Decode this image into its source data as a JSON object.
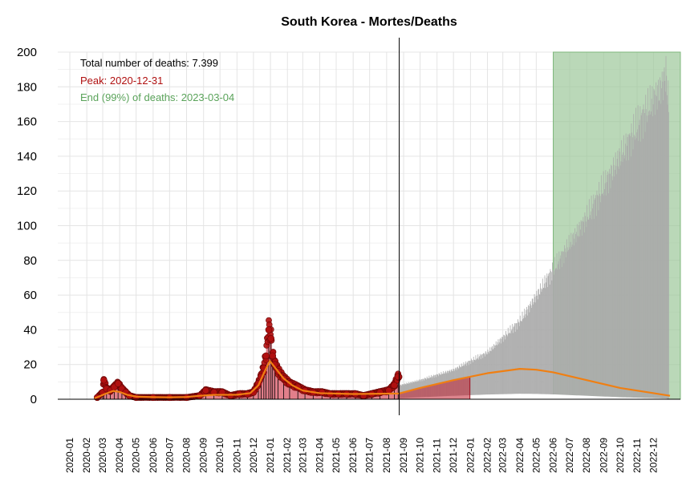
{
  "chart_data": {
    "type": "bar",
    "title": "South Korea - Mortes/Deaths",
    "xlabel": "",
    "ylabel": "",
    "ylim": [
      0,
      200
    ],
    "yticks": [
      0,
      20,
      40,
      60,
      80,
      100,
      120,
      140,
      160,
      180,
      200
    ],
    "xlim": [
      "2019-12-10",
      "2023-01-19"
    ],
    "xticks": [
      "2020-01",
      "2020-02",
      "2020-03",
      "2020-04",
      "2020-05",
      "2020-06",
      "2020-07",
      "2020-08",
      "2020-09",
      "2020-10",
      "2020-11",
      "2020-12",
      "2021-01",
      "2021-02",
      "2021-03",
      "2021-04",
      "2021-05",
      "2021-06",
      "2021-07",
      "2021-08",
      "2021-09",
      "2021-10",
      "2021-11",
      "2021-12",
      "2022-01",
      "2022-02",
      "2022-03",
      "2022-04",
      "2022-05",
      "2022-06",
      "2022-07",
      "2022-08",
      "2022-09",
      "2022-10",
      "2022-11",
      "2022-12"
    ],
    "grid": true,
    "data_end_date": "2021-08-24",
    "annotations": {
      "total": "Total number of deaths: 7.399",
      "peak": "Peak: 2020-12-31",
      "end": "End (99%) of deaths: 2023-03-04"
    },
    "colors": {
      "observed_points": "#b01010",
      "observed_bars": "#e07b87",
      "fit_line": "#f07f12",
      "projection_bars": "#aaaaaa",
      "end_region": "#9cc79a",
      "peak_text": "#b01010",
      "end_text": "#5aa35a"
    },
    "series": [
      {
        "kind": "observed_daily_deaths",
        "points": [
          [
            "2020-02-20",
            1
          ],
          [
            "2020-03-01",
            4
          ],
          [
            "2020-03-03",
            11
          ],
          [
            "2020-03-08",
            6
          ],
          [
            "2020-03-15",
            5
          ],
          [
            "2020-03-22",
            7
          ],
          [
            "2020-03-29",
            9
          ],
          [
            "2020-04-05",
            6
          ],
          [
            "2020-04-12",
            4
          ],
          [
            "2020-04-19",
            2
          ],
          [
            "2020-05-01",
            1
          ],
          [
            "2020-06-01",
            1
          ],
          [
            "2020-07-01",
            1
          ],
          [
            "2020-08-01",
            1
          ],
          [
            "2020-08-25",
            2
          ],
          [
            "2020-09-05",
            5
          ],
          [
            "2020-09-20",
            4
          ],
          [
            "2020-10-05",
            4
          ],
          [
            "2020-10-20",
            2
          ],
          [
            "2020-11-05",
            3
          ],
          [
            "2020-11-20",
            3
          ],
          [
            "2020-12-01",
            4
          ],
          [
            "2020-12-10",
            9
          ],
          [
            "2020-12-15",
            13
          ],
          [
            "2020-12-20",
            18
          ],
          [
            "2020-12-24",
            25
          ],
          [
            "2020-12-29",
            40
          ],
          [
            "2021-01-02",
            35
          ],
          [
            "2021-01-05",
            25
          ],
          [
            "2021-01-09",
            20
          ],
          [
            "2021-01-15",
            16
          ],
          [
            "2021-01-25",
            12
          ],
          [
            "2021-02-05",
            9
          ],
          [
            "2021-02-20",
            7
          ],
          [
            "2021-03-05",
            5
          ],
          [
            "2021-03-20",
            4
          ],
          [
            "2021-04-05",
            4
          ],
          [
            "2021-04-20",
            3
          ],
          [
            "2021-05-05",
            3
          ],
          [
            "2021-05-20",
            3
          ],
          [
            "2021-06-05",
            3
          ],
          [
            "2021-06-20",
            2
          ],
          [
            "2021-07-05",
            3
          ],
          [
            "2021-07-20",
            4
          ],
          [
            "2021-08-05",
            5
          ],
          [
            "2021-08-15",
            8
          ],
          [
            "2021-08-22",
            13
          ]
        ]
      },
      {
        "kind": "fitted_curve",
        "points": [
          [
            "2020-02-15",
            0.5
          ],
          [
            "2020-03-05",
            3
          ],
          [
            "2020-03-20",
            4.8
          ],
          [
            "2020-04-01",
            4.2
          ],
          [
            "2020-04-15",
            2.5
          ],
          [
            "2020-05-01",
            1.5
          ],
          [
            "2020-06-01",
            1.2
          ],
          [
            "2020-07-01",
            1.1
          ],
          [
            "2020-08-01",
            1.3
          ],
          [
            "2020-08-25",
            2
          ],
          [
            "2020-09-20",
            2.5
          ],
          [
            "2020-11-01",
            2.6
          ],
          [
            "2020-11-25",
            3.5
          ],
          [
            "2020-12-10",
            8
          ],
          [
            "2020-12-20",
            15
          ],
          [
            "2020-12-31",
            22
          ],
          [
            "2021-01-10",
            18
          ],
          [
            "2021-01-25",
            12
          ],
          [
            "2021-02-10",
            8
          ],
          [
            "2021-03-01",
            5
          ],
          [
            "2021-04-01",
            3.5
          ],
          [
            "2021-06-01",
            3
          ],
          [
            "2021-08-24",
            3.3
          ],
          [
            "2021-10-01",
            6.5
          ],
          [
            "2021-12-01",
            11
          ],
          [
            "2022-02-01",
            15
          ],
          [
            "2022-04-01",
            17.5
          ],
          [
            "2022-05-01",
            17
          ],
          [
            "2022-06-01",
            15.5
          ],
          [
            "2022-08-01",
            11
          ],
          [
            "2022-10-01",
            6.5
          ],
          [
            "2022-12-01",
            3.5
          ],
          [
            "2022-12-31",
            2
          ]
        ]
      },
      {
        "kind": "projection_upper_band",
        "points": [
          [
            "2021-08-24",
            8
          ],
          [
            "2021-10-01",
            11
          ],
          [
            "2021-12-01",
            17
          ],
          [
            "2022-02-01",
            27
          ],
          [
            "2022-04-01",
            45
          ],
          [
            "2022-06-01",
            75
          ],
          [
            "2022-08-01",
            105
          ],
          [
            "2022-10-01",
            140
          ],
          [
            "2022-11-15",
            165
          ],
          [
            "2022-12-15",
            180
          ],
          [
            "2022-12-23",
            188
          ],
          [
            "2022-12-28",
            168
          ]
        ]
      }
    ],
    "regions": [
      {
        "kind": "observed_fill",
        "from": "2021-08-24",
        "to": "2021-12-31"
      },
      {
        "kind": "end_99_percent",
        "from": "2022-06-01",
        "to": "2023-01-19",
        "ymax": 200
      }
    ],
    "legend": "none"
  }
}
